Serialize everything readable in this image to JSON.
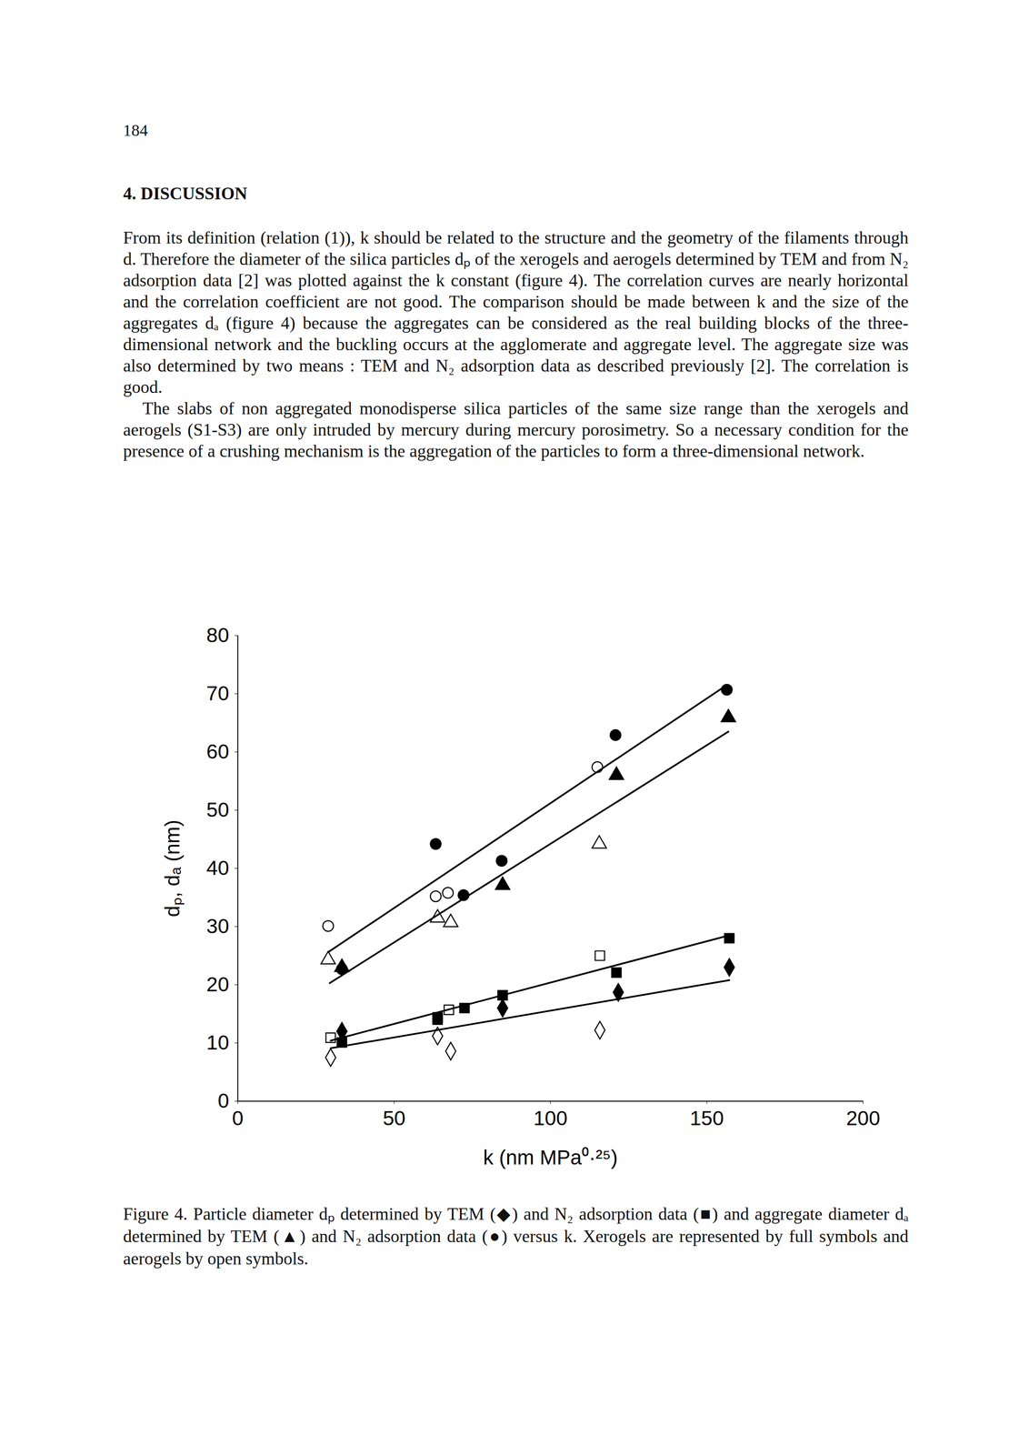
{
  "page_number": "184",
  "heading": "4. DISCUSSION",
  "paragraphs": [
    "From its definition (relation (1)), k should be related to the structure and the geometry of the filaments through d. Therefore the diameter of the silica particles dₚ of the xerogels and aerogels determined by TEM and from N₂ adsorption data [2] was plotted against the k constant (figure 4). The correlation curves are nearly horizontal and the correlation coefficient are not good. The comparison should be made between k and the size of the aggregates dₐ (figure 4) because the aggregates can be considered as the real building blocks of the three-dimensional network and the buckling occurs at the agglomerate and aggregate level. The aggregate size was also determined by two means : TEM and N₂ adsorption data as described previously [2]. The correlation is good.",
    "The slabs of non aggregated monodisperse silica particles of the same size range than the xerogels and aerogels (S1-S3) are only intruded by mercury during mercury porosimetry. So a necessary condition for the presence of a crushing mechanism is the aggregation of the particles to form a three-dimensional network."
  ],
  "chart_data": {
    "type": "scatter",
    "x_label": "k (nm MPa⁰·²⁵)",
    "y_label": "dₚ, dₐ (nm)",
    "xlim": [
      0,
      200
    ],
    "xticks": [
      0,
      50,
      100,
      150,
      200
    ],
    "ylim": [
      0,
      80
    ],
    "yticks": [
      0,
      10,
      20,
      30,
      40,
      50,
      60,
      70,
      80
    ],
    "grid": false,
    "series": [
      {
        "type": "scatter",
        "marker": "circle",
        "color": "#000000",
        "x": [
          33.3,
          63.3,
          72.2,
          84.4,
          120.8,
          156.4
        ],
        "values": [
          22.7,
          44.2,
          35.4,
          41.3,
          62.9,
          70.7
        ]
      },
      {
        "type": "scatter",
        "marker": "circle-open",
        "color": "#000000",
        "x": [
          28.9,
          63.3,
          67.2,
          115.0
        ],
        "values": [
          30.1,
          35.2,
          35.8,
          57.4
        ]
      },
      {
        "type": "scatter",
        "marker": "triangle",
        "color": "#000000",
        "x": [
          33.3,
          84.7,
          121.1,
          156.9
        ],
        "values": [
          23.0,
          37.1,
          56.0,
          65.9
        ]
      },
      {
        "type": "scatter",
        "marker": "triangle-open",
        "color": "#000000",
        "x": [
          28.9,
          63.9,
          68.1,
          115.6
        ],
        "values": [
          24.3,
          31.5,
          30.7,
          44.2
        ]
      },
      {
        "type": "scatter",
        "marker": "square",
        "color": "#000000",
        "x": [
          33.3,
          63.9,
          63.9,
          72.5,
          84.7,
          121.1,
          157.2
        ],
        "values": [
          10.1,
          14.4,
          14.0,
          16.0,
          18.2,
          22.1,
          28.0
        ]
      },
      {
        "type": "scatter",
        "marker": "square-open",
        "color": "#000000",
        "x": [
          29.7,
          67.5,
          115.8
        ],
        "values": [
          10.9,
          15.7,
          25.0
        ]
      },
      {
        "type": "scatter",
        "marker": "diamond",
        "color": "#000000",
        "x": [
          33.3,
          84.7,
          121.7,
          157.2
        ],
        "values": [
          12.0,
          16.0,
          18.7,
          23.0
        ]
      },
      {
        "type": "scatter",
        "marker": "diamond-open",
        "color": "#000000",
        "x": [
          29.7,
          63.9,
          68.1,
          115.8
        ],
        "values": [
          7.5,
          11.2,
          8.6,
          12.2
        ]
      },
      {
        "type": "line",
        "line_style": "solid",
        "color": "#000000",
        "x": [
          28.9,
          156.4
        ],
        "values": [
          25.6,
          71.5
        ]
      },
      {
        "type": "line",
        "line_style": "solid",
        "color": "#000000",
        "x": [
          29.4,
          156.9
        ],
        "values": [
          20.3,
          63.5
        ]
      },
      {
        "type": "line",
        "line_style": "solid",
        "color": "#000000",
        "x": [
          29.7,
          157.2
        ],
        "values": [
          10.4,
          28.5
        ]
      },
      {
        "type": "line",
        "line_style": "solid",
        "color": "#000000",
        "x": [
          29.7,
          157.2
        ],
        "values": [
          9.1,
          20.8
        ]
      }
    ]
  },
  "caption": "Figure 4. Particle diameter dₚ determined by TEM (◆) and N₂ adsorption data (■) and aggregate diameter dₐ determined by TEM (▲) and N₂ adsorption data (●) versus k. Xerogels are represented by full symbols and aerogels by open symbols."
}
